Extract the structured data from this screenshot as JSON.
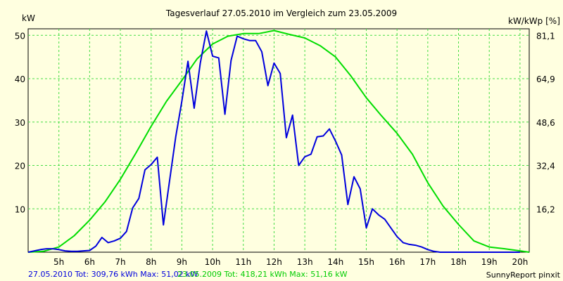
{
  "chart_data": {
    "type": "line",
    "title": "Tagesverlauf 27.05.2010 im Vergleich zum 23.05.2009",
    "ylabel_left": "kW",
    "ylabel_right": "kW/kWp [%]",
    "xlim": [
      4.0,
      20.3
    ],
    "ylim": [
      0,
      51.5
    ],
    "x_ticks": [
      5,
      6,
      7,
      8,
      9,
      10,
      11,
      12,
      13,
      14,
      15,
      16,
      17,
      18,
      19,
      20
    ],
    "x_tick_labels": [
      "5h",
      "6h",
      "7h",
      "8h",
      "9h",
      "10h",
      "11h",
      "12h",
      "13h",
      "14h",
      "15h",
      "16h",
      "17h",
      "18h",
      "19h",
      "20h"
    ],
    "y_ticks_left": [
      10,
      20,
      30,
      40,
      50
    ],
    "y_ticks_right": [
      {
        "label": "16,2",
        "value": 10.0
      },
      {
        "label": "32,4",
        "value": 20.0
      },
      {
        "label": "48,6",
        "value": 30.0
      },
      {
        "label": "64,9",
        "value": 40.0
      },
      {
        "label": "81,1",
        "value": 50.0
      }
    ],
    "grid": true,
    "series": [
      {
        "name": "27.05.2010 Tot: 309,76 kWh Max: 51,02 kW",
        "color": "#0000dd",
        "x": [
          4.0,
          4.4,
          4.6,
          4.8,
          5.0,
          5.2,
          5.4,
          5.6,
          5.8,
          6.0,
          6.2,
          6.4,
          6.6,
          6.8,
          7.0,
          7.2,
          7.4,
          7.6,
          7.8,
          8.0,
          8.2,
          8.4,
          8.6,
          8.8,
          9.0,
          9.2,
          9.4,
          9.6,
          9.8,
          10.0,
          10.2,
          10.4,
          10.6,
          10.8,
          11.0,
          11.2,
          11.4,
          11.6,
          11.8,
          12.0,
          12.2,
          12.4,
          12.6,
          12.8,
          13.0,
          13.2,
          13.4,
          13.6,
          13.8,
          14.0,
          14.2,
          14.4,
          14.6,
          14.8,
          15.0,
          15.2,
          15.4,
          15.6,
          15.8,
          16.0,
          16.2,
          16.4,
          16.6,
          16.8,
          17.0,
          17.2,
          17.4,
          17.6,
          17.8,
          18.0,
          18.2,
          18.4,
          18.6,
          18.8,
          19.0,
          19.2,
          19.4,
          19.6,
          19.8,
          20.0
        ],
        "y": [
          0,
          0.6,
          0.8,
          0.8,
          0.6,
          0.3,
          0.2,
          0.2,
          0.3,
          0.4,
          1.4,
          3.4,
          2.2,
          2.6,
          3.2,
          4.8,
          10.2,
          12.4,
          19.0,
          20.2,
          21.9,
          6.3,
          16.4,
          26.6,
          34.8,
          44.0,
          33.2,
          43.6,
          51.0,
          45.2,
          44.8,
          31.8,
          44.2,
          49.8,
          49.2,
          48.8,
          48.8,
          46.2,
          38.4,
          43.6,
          41.2,
          26.4,
          31.6,
          20.0,
          22.0,
          22.6,
          26.6,
          26.8,
          28.4,
          25.6,
          22.4,
          11.0,
          17.4,
          14.6,
          5.6,
          10.0,
          8.6,
          7.6,
          5.6,
          3.6,
          2.2,
          1.8,
          1.6,
          1.2,
          0.6,
          0.2,
          0,
          0,
          0,
          0,
          0,
          0,
          0,
          0,
          0,
          0,
          0,
          0,
          0,
          0
        ]
      },
      {
        "name": "23.05.2009 Tot: 418,21 kWh Max: 51,16 kW",
        "color": "#00dd00",
        "x": [
          4.0,
          4.5,
          5.0,
          5.5,
          6.0,
          6.5,
          7.0,
          7.5,
          8.0,
          8.5,
          9.0,
          9.5,
          10.0,
          10.5,
          11.0,
          11.5,
          12.0,
          12.5,
          13.0,
          13.5,
          14.0,
          14.5,
          15.0,
          15.5,
          16.0,
          16.5,
          17.0,
          17.5,
          18.0,
          18.5,
          19.0,
          19.5,
          20.0,
          20.3
        ],
        "y": [
          0,
          0.2,
          1.2,
          3.8,
          7.4,
          11.6,
          16.8,
          22.8,
          29.0,
          34.8,
          39.6,
          44.6,
          48.0,
          49.8,
          50.4,
          50.4,
          51.1,
          50.2,
          49.4,
          47.6,
          45.0,
          40.6,
          35.6,
          31.4,
          27.4,
          22.6,
          16.0,
          10.6,
          6.4,
          2.6,
          1.2,
          0.8,
          0.3,
          0
        ]
      }
    ]
  },
  "footer": {
    "legend_blue": "27.05.2010 Tot: 309,76 kWh Max: 51,02 kW",
    "legend_green": "23.05.2009 Tot: 418,21 kWh Max: 51,16 kW",
    "credit": "SunnyReport pinxit"
  },
  "colors": {
    "background": "#ffffe0",
    "grid": "#44dd44",
    "blue": "#0000dd",
    "green": "#00dd00"
  }
}
